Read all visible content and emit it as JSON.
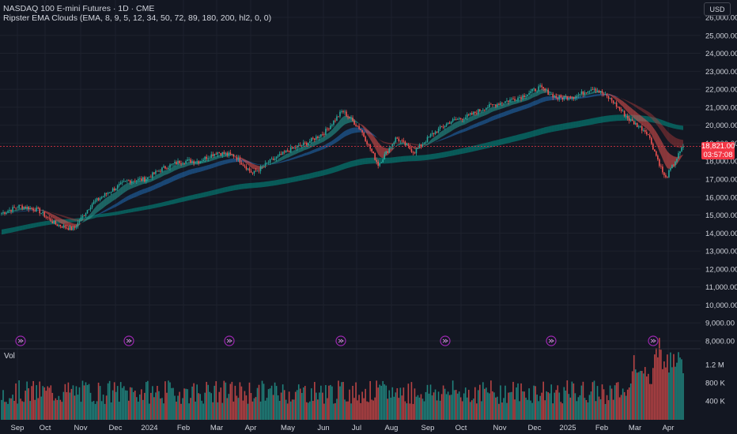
{
  "header": {
    "title": "NASDAQ 100 E-mini Futures · 1D · CME",
    "indicator": "Ripster EMA Clouds (EMA, 8, 9, 5, 12, 34, 50, 72, 89, 180, 200, hl2, 0, 0)",
    "currency": "USD",
    "volume_label": "Vol"
  },
  "last_price": {
    "value": "18,821.00",
    "countdown": "03:57:08",
    "numeric": 18821
  },
  "colors": {
    "background": "#131722",
    "up": "#26a69a",
    "down": "#ef5350",
    "tag": "#f23645",
    "grid": "#1e222d"
  },
  "icons": [
    "events-arrow-icon",
    "events-arrow-icon",
    "events-arrow-icon",
    "events-arrow-icon",
    "events-arrow-icon",
    "events-arrow-icon",
    "events-arrow-icon"
  ],
  "chart_data": {
    "type": "candlestick",
    "y_ticks": [
      "26,000.00",
      "25,000.00",
      "24,000.00",
      "23,000.00",
      "22,000.00",
      "21,000.00",
      "20,000.00",
      "19,000.00",
      "18,000.00",
      "17,000.00",
      "16,000.00",
      "15,000.00",
      "14,000.00",
      "13,000.00",
      "12,000.00",
      "11,000.00",
      "10,000.00",
      "9,000.00",
      "8,000.00"
    ],
    "vol_ticks": [
      "1.2 M",
      "800 K",
      "400 K"
    ],
    "x_ticks": [
      "Sep",
      "Oct",
      "Nov",
      "Dec",
      "2024",
      "Feb",
      "Mar",
      "Apr",
      "May",
      "Jun",
      "Jul",
      "Aug",
      "Sep",
      "Oct",
      "Nov",
      "Dec",
      "2025",
      "Feb",
      "Mar",
      "Apr"
    ],
    "ylim": [
      8000,
      26500
    ],
    "price_path": [
      15100,
      15500,
      15300,
      14500,
      14200,
      15600,
      16300,
      16900,
      17000,
      17600,
      18000,
      18000,
      18500,
      18300,
      17300,
      18000,
      18600,
      19000,
      19600,
      20800,
      19800,
      17800,
      19300,
      18500,
      19500,
      20200,
      20500,
      21000,
      21300,
      21600,
      22100,
      21500,
      21600,
      22100,
      21400,
      20300,
      19600,
      17000,
      18821
    ]
  }
}
